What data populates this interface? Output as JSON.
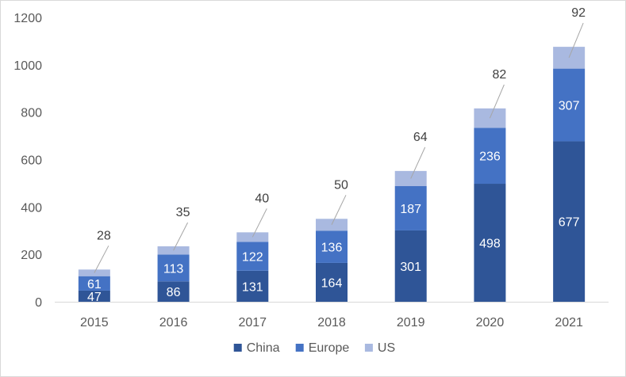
{
  "chart_data": {
    "type": "bar",
    "stacked": true,
    "categories": [
      "2015",
      "2016",
      "2017",
      "2018",
      "2019",
      "2020",
      "2021"
    ],
    "series": [
      {
        "name": "China",
        "color": "#2f5597",
        "values": [
          47,
          86,
          131,
          164,
          301,
          498,
          677
        ]
      },
      {
        "name": "Europe",
        "color": "#4472c4",
        "values": [
          61,
          113,
          122,
          136,
          187,
          236,
          307
        ]
      },
      {
        "name": "US",
        "color": "#a9b9e0",
        "values": [
          28,
          35,
          40,
          50,
          64,
          82,
          92
        ]
      }
    ],
    "ylim": [
      0,
      1200
    ],
    "yticks": [
      0,
      200,
      400,
      600,
      800,
      1000,
      1200
    ],
    "grid": false,
    "legend": "bottom",
    "data_labels": true
  }
}
